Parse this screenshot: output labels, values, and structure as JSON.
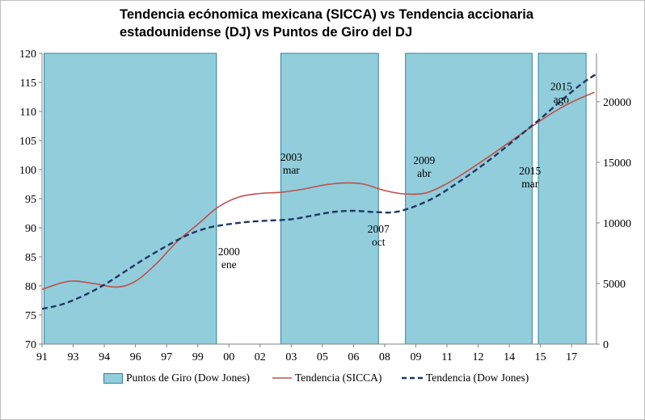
{
  "title_line1": "Tendencia ecónomica mexicana (SICCA) vs Tendencia accionaria",
  "title_line2": "estadounidense (DJ) vs Puntos de Giro del DJ",
  "colors": {
    "band": "#92cddc",
    "band_edge": "#31859c",
    "sicca": "#c0504d",
    "dj": "#1f3864",
    "axis": "#808080"
  },
  "chart_data": {
    "type": "line",
    "x_unit": "year",
    "xlim": [
      1991,
      2017.7
    ],
    "ylim_left": [
      70,
      120
    ],
    "ylim_right": [
      0,
      24000
    ],
    "left_ticks": [
      70,
      75,
      80,
      85,
      90,
      95,
      100,
      105,
      110,
      115,
      120
    ],
    "right_ticks": [
      0,
      5000,
      10000,
      15000,
      20000
    ],
    "x_ticks": [
      {
        "label": "91",
        "x": 1991.0
      },
      {
        "label": "93",
        "x": 1992.5
      },
      {
        "label": "94",
        "x": 1994.0
      },
      {
        "label": "96",
        "x": 1995.5
      },
      {
        "label": "97",
        "x": 1997.0
      },
      {
        "label": "99",
        "x": 1998.5
      },
      {
        "label": "00",
        "x": 2000.0
      },
      {
        "label": "02",
        "x": 2001.5
      },
      {
        "label": "03",
        "x": 2003.0
      },
      {
        "label": "05",
        "x": 2004.5
      },
      {
        "label": "06",
        "x": 2006.0
      },
      {
        "label": "08",
        "x": 2007.5
      },
      {
        "label": "09",
        "x": 2009.0
      },
      {
        "label": "11",
        "x": 2010.5
      },
      {
        "label": "12",
        "x": 2012.0
      },
      {
        "label": "14",
        "x": 2013.5
      },
      {
        "label": "15",
        "x": 2015.0
      },
      {
        "label": "17",
        "x": 2016.5
      }
    ],
    "bands": [
      {
        "name": "Puntos de Giro",
        "x0": 1991.1,
        "x1": 1999.4
      },
      {
        "name": "Puntos de Giro",
        "x0": 2002.5,
        "x1": 2007.2
      },
      {
        "name": "Puntos de Giro",
        "x0": 2008.5,
        "x1": 2014.6
      },
      {
        "name": "Puntos de Giro",
        "x0": 2014.9,
        "x1": 2017.2
      }
    ],
    "series": [
      {
        "name": "Tendencia (SICCA)",
        "axis": "left",
        "style": "solid",
        "x": [
          1991.0,
          1992.3,
          1993.5,
          1994.6,
          1995.5,
          1996.5,
          1997.5,
          1998.5,
          1999.5,
          2000.5,
          2001.5,
          2002.5,
          2003.5,
          2004.5,
          2005.5,
          2006.5,
          2007.5,
          2008.5,
          2009.5,
          2010.5,
          2011.5,
          2012.5,
          2013.5,
          2014.5,
          2015.5,
          2016.5,
          2017.6
        ],
        "values": [
          79.4,
          80.8,
          80.4,
          79.8,
          80.8,
          83.8,
          87.6,
          90.6,
          93.6,
          95.3,
          95.9,
          96.1,
          96.6,
          97.3,
          97.7,
          97.5,
          96.4,
          95.8,
          96.0,
          97.6,
          99.8,
          102.2,
          104.7,
          107.2,
          109.6,
          111.6,
          113.3
        ]
      },
      {
        "name": "Tendencia (Dow Jones)",
        "axis": "right",
        "style": "dashed",
        "x": [
          1991.0,
          1992.0,
          1993.0,
          1994.0,
          1995.0,
          1996.0,
          1997.0,
          1998.0,
          1999.0,
          2000.0,
          2001.0,
          2002.0,
          2003.0,
          2004.0,
          2005.0,
          2006.0,
          2007.0,
          2008.0,
          2009.0,
          2010.0,
          2011.0,
          2012.0,
          2013.0,
          2014.0,
          2015.0,
          2016.0,
          2017.0,
          2017.7
        ],
        "values": [
          2900,
          3300,
          4000,
          4900,
          6000,
          7100,
          8100,
          9000,
          9600,
          9900,
          10100,
          10200,
          10300,
          10600,
          10900,
          11000,
          10900,
          10900,
          11400,
          12200,
          13300,
          14500,
          15800,
          17200,
          18600,
          20100,
          21500,
          22300
        ]
      }
    ],
    "annotations": [
      {
        "line1": "2000",
        "line2": "ene",
        "x": 2000.0,
        "y": 85.3
      },
      {
        "line1": "2003",
        "line2": "mar",
        "x": 2003.0,
        "y": 101.5
      },
      {
        "line1": "2007",
        "line2": "oct",
        "x": 2007.2,
        "y": 89.2
      },
      {
        "line1": "2009",
        "line2": "abr",
        "x": 2009.4,
        "y": 101.0
      },
      {
        "line1": "2015",
        "line2": "mar",
        "x": 2014.5,
        "y": 99.2
      },
      {
        "line1": "2015",
        "line2": "ago",
        "x": 2016.0,
        "y": 113.7
      }
    ]
  },
  "legend": {
    "bands_label": "Puntos de Giro (Dow Jones)",
    "sicca_label": "Tendencia (SICCA)",
    "dj_label": "Tendencia (Dow Jones)"
  }
}
